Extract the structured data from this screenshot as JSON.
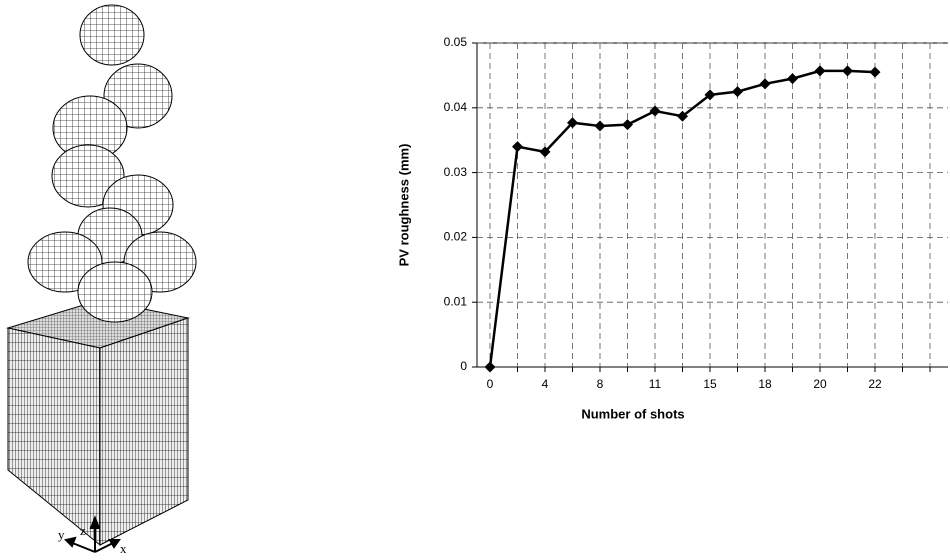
{
  "chart_data": {
    "type": "line",
    "x_label": "Number of shots",
    "y_label": "PV roughness (mm)",
    "categories": [
      "0",
      null,
      "4",
      null,
      "8",
      null,
      "11",
      null,
      "15",
      null,
      "18",
      null,
      "20",
      null,
      "22",
      null,
      null
    ],
    "series": [
      {
        "name": "PV roughness",
        "color": "#000000",
        "values": [
          0,
          0.034,
          0.0332,
          0.0377,
          0.0372,
          0.0374,
          0.0395,
          0.0387,
          0.042,
          0.0425,
          0.0437,
          0.0445,
          0.0457,
          0.0457,
          0.0455,
          null,
          null
        ]
      }
    ],
    "ylim": [
      0,
      0.05
    ],
    "yticks": [
      0,
      0.01,
      0.02,
      0.03,
      0.04,
      0.05
    ],
    "grid": true,
    "marker": "diamond"
  },
  "illustration": {
    "axis_labels": [
      "y",
      "z",
      "x"
    ]
  }
}
